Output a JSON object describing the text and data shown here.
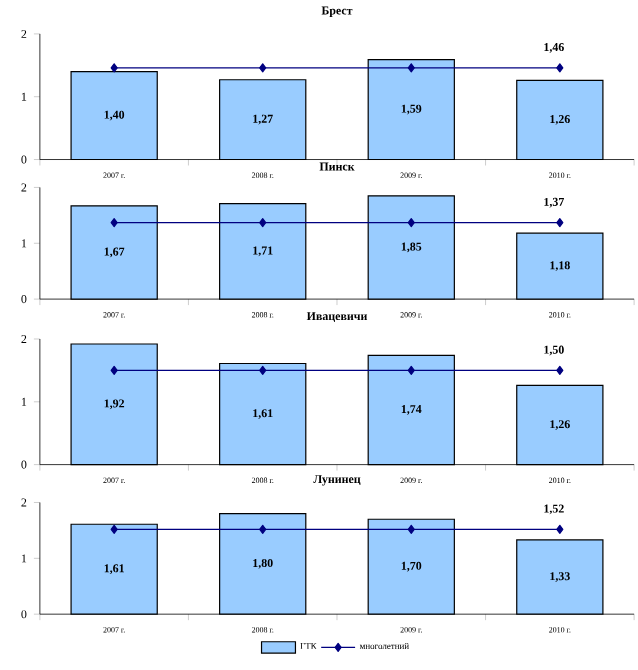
{
  "chart_data": [
    {
      "type": "bar",
      "title": "Брест",
      "categories": [
        "2007 г.",
        "2008 г.",
        "2009 г.",
        "2010 г."
      ],
      "ylim": [
        0,
        2
      ],
      "yticks": [
        0,
        1,
        2
      ],
      "legend": false,
      "series": [
        {
          "type": "bar",
          "color": "#99ccff",
          "values": [
            1.4,
            1.27,
            1.59,
            1.26
          ],
          "value_labels": [
            "1,40",
            "1,27",
            "1,59",
            "1,26"
          ]
        },
        {
          "type": "line",
          "color": "#000080",
          "marker": "diamond",
          "values": [
            1.46,
            1.46,
            1.46,
            1.46
          ],
          "value_labels": [
            null,
            null,
            null,
            "1,46"
          ]
        }
      ]
    },
    {
      "type": "bar",
      "title": "Пинск",
      "categories": [
        "2007 г.",
        "2008 г.",
        "2009 г.",
        "2010 г."
      ],
      "ylim": [
        0,
        2
      ],
      "yticks": [
        0,
        1,
        2
      ],
      "legend": false,
      "series": [
        {
          "type": "bar",
          "color": "#99ccff",
          "values": [
            1.67,
            1.71,
            1.85,
            1.18
          ],
          "value_labels": [
            "1,67",
            "1,71",
            "1,85",
            "1,18"
          ]
        },
        {
          "type": "line",
          "color": "#000080",
          "marker": "diamond",
          "values": [
            1.37,
            1.37,
            1.37,
            1.37
          ],
          "value_labels": [
            null,
            null,
            null,
            "1,37"
          ]
        }
      ]
    },
    {
      "type": "bar",
      "title": "Ивацевичи",
      "categories": [
        "2007 г.",
        "2008 г.",
        "2009 г.",
        "2010 г."
      ],
      "ylim": [
        0,
        2
      ],
      "yticks": [
        0,
        1,
        2
      ],
      "legend": false,
      "series": [
        {
          "type": "bar",
          "color": "#99ccff",
          "values": [
            1.92,
            1.61,
            1.74,
            1.26
          ],
          "value_labels": [
            "1,92",
            "1,61",
            "1,74",
            "1,26"
          ]
        },
        {
          "type": "line",
          "color": "#000080",
          "marker": "diamond",
          "values": [
            1.5,
            1.5,
            1.5,
            1.5
          ],
          "value_labels": [
            null,
            null,
            null,
            "1,50"
          ]
        }
      ]
    },
    {
      "type": "bar",
      "title": "Лунинец",
      "categories": [
        "2007 г.",
        "2008 г.",
        "2009 г.",
        "2010 г."
      ],
      "ylim": [
        0,
        2
      ],
      "yticks": [
        0,
        1,
        2
      ],
      "legend": "bottom",
      "series": [
        {
          "type": "bar",
          "name": "ГТК",
          "color": "#99ccff",
          "values": [
            1.61,
            1.8,
            1.7,
            1.33
          ],
          "value_labels": [
            "1,61",
            "1,80",
            "1,70",
            "1,33"
          ]
        },
        {
          "type": "line",
          "name": "многолетний",
          "color": "#000080",
          "marker": "diamond",
          "values": [
            1.52,
            1.52,
            1.52,
            1.52
          ],
          "value_labels": [
            null,
            null,
            null,
            "1,52"
          ]
        }
      ]
    }
  ]
}
